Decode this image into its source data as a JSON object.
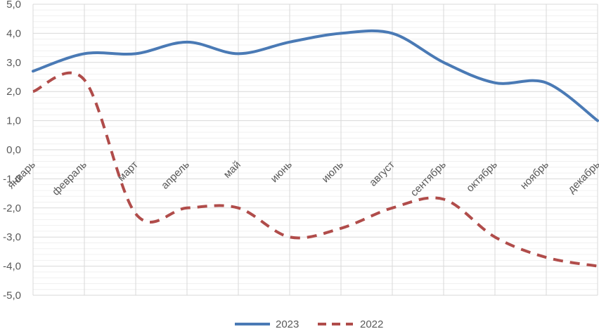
{
  "chart_data": {
    "type": "line",
    "categories": [
      "январь",
      "февраль",
      "март",
      "апрель",
      "май",
      "июнь",
      "июль",
      "август",
      "сентябрь",
      "октябрь",
      "ноябрь",
      "декабрь"
    ],
    "series": [
      {
        "name": "2023",
        "values": [
          2.7,
          3.3,
          3.3,
          3.7,
          3.3,
          3.7,
          4.0,
          4.0,
          3.0,
          2.3,
          2.3,
          1.0
        ],
        "color": "#4a7ab5",
        "style": "solid"
      },
      {
        "name": "2022",
        "values": [
          2.0,
          2.4,
          -2.2,
          -2.0,
          -2.0,
          -3.0,
          -2.7,
          -2.0,
          -1.7,
          -3.0,
          -3.7,
          -4.0
        ],
        "color": "#b04c4a",
        "style": "dashed"
      }
    ],
    "yticks": [
      "-5,0",
      "-4,0",
      "-3,0",
      "-2,0",
      "-1,0",
      "0,0",
      "1,0",
      "2,0",
      "3,0",
      "4,0",
      "5,0"
    ],
    "ylim": [
      -5,
      5
    ],
    "grid": true,
    "legend_position": "bottom"
  }
}
